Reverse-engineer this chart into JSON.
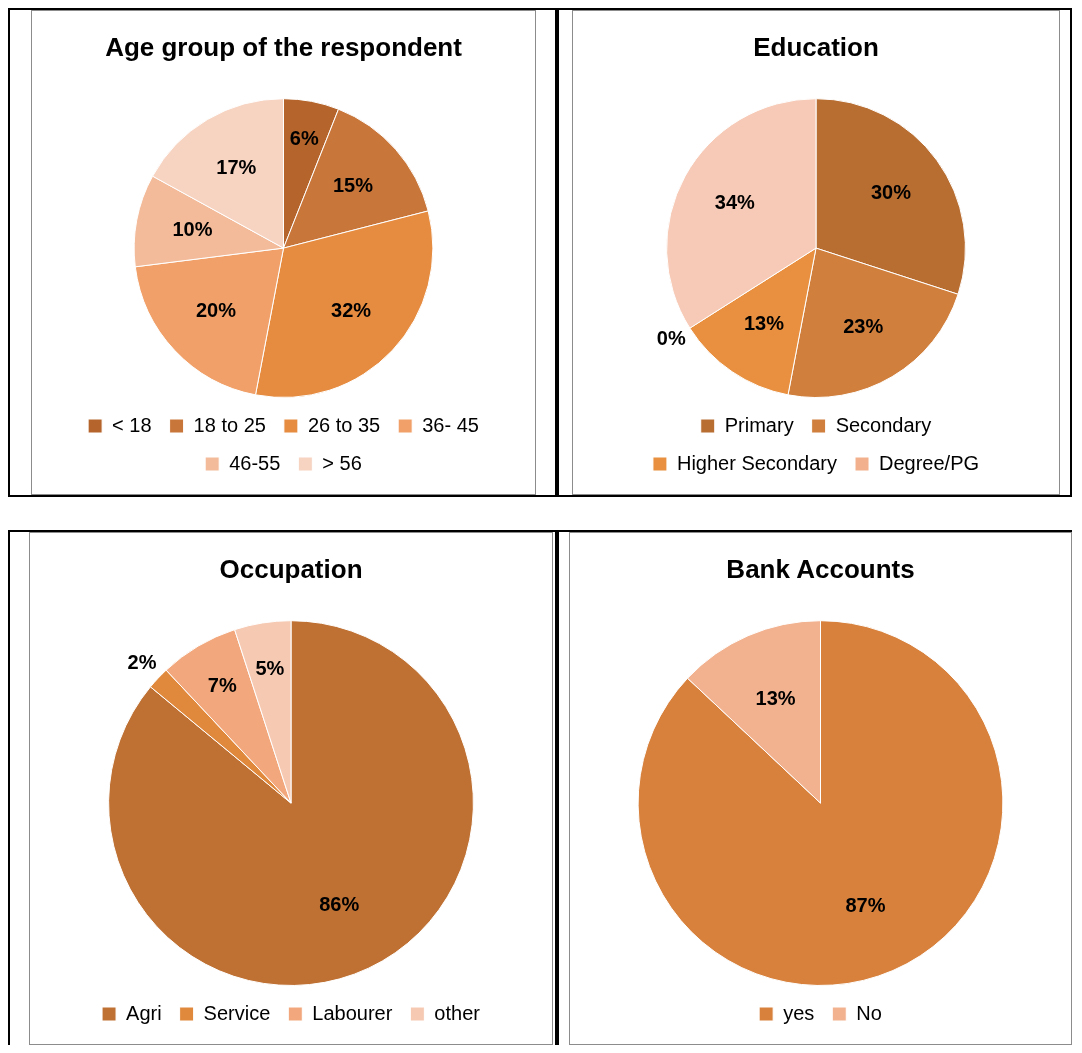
{
  "chart_data": [
    {
      "type": "pie",
      "title": "Age group of the respondent",
      "categories": [
        "< 18",
        "18 to 25",
        "26 to 35",
        "36- 45",
        "46-55",
        "> 56"
      ],
      "values": [
        6,
        15,
        32,
        20,
        10,
        17
      ],
      "value_labels": [
        "6%",
        "15%",
        "32%",
        "20%",
        "10%",
        "17%"
      ],
      "colors": [
        "#b5652b",
        "#c9763a",
        "#e68c40",
        "#f0a068",
        "#f3bb9a",
        "#f7d3c2"
      ],
      "legend": "bottom"
    },
    {
      "type": "pie",
      "title": "Education",
      "categories": [
        "Primary",
        "Secondary",
        "Higher Secondary",
        "Degree/PG",
        null
      ],
      "values": [
        30,
        23,
        13,
        0,
        34
      ],
      "value_labels": [
        "30%",
        "23%",
        "13%",
        "0%",
        "34%"
      ],
      "colors": [
        "#b86d31",
        "#d07f3d",
        "#e8903f",
        "#f2b08c",
        "#f6cab6"
      ],
      "legend": "bottom"
    },
    {
      "type": "pie",
      "title": "Occupation",
      "categories": [
        "Agri",
        "Service",
        "Labourer",
        "other"
      ],
      "values": [
        86,
        2,
        7,
        5
      ],
      "value_labels": [
        "86%",
        "2%",
        "7%",
        "5%"
      ],
      "colors": [
        "#bf7134",
        "#e0893d",
        "#f2a87c",
        "#f6c9b3"
      ],
      "legend": "bottom"
    },
    {
      "type": "pie",
      "title": "Bank Accounts",
      "categories": [
        "yes",
        "No"
      ],
      "values": [
        87,
        13
      ],
      "value_labels": [
        "87%",
        "13%"
      ],
      "colors": [
        "#d7813d",
        "#f2b290"
      ],
      "legend": "bottom"
    }
  ]
}
